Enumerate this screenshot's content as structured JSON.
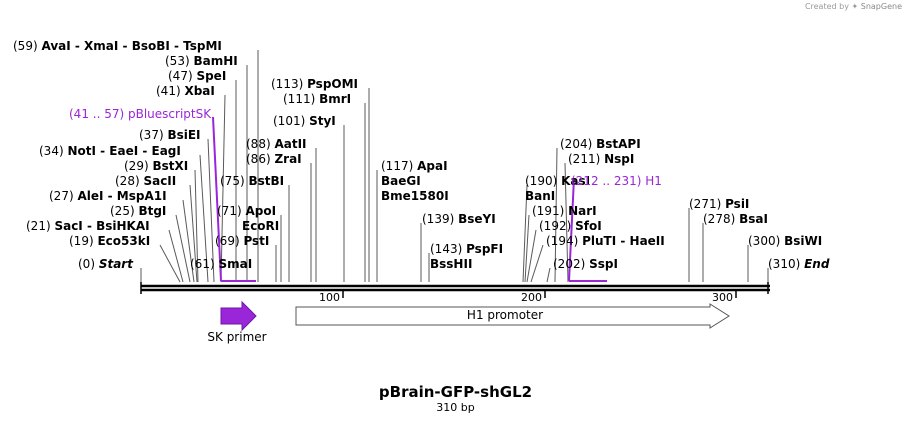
{
  "credit": {
    "prefix": "Created by",
    "brand": "SnapGene"
  },
  "map": {
    "title": "pBrain-GFP-shGL2",
    "length_label": "310 bp",
    "length": 310
  },
  "colors": {
    "feature": "#9a26d9",
    "line": "#5a5a5a",
    "backbone": "#000000"
  },
  "ticks": [
    {
      "value": 100,
      "label": "100"
    },
    {
      "value": 200,
      "label": "200"
    },
    {
      "value": 300,
      "label": "300"
    }
  ],
  "sites": [
    {
      "pos": "(59)",
      "name": "AvaI  - XmaI  - BsoBI  - TspMI"
    },
    {
      "pos": "(53)",
      "name": "BamHI"
    },
    {
      "pos": "(47)",
      "name": "SpeI"
    },
    {
      "pos": "(41)",
      "name": "XbaI"
    },
    {
      "pos": "(41 .. 57)",
      "name": "pBluescriptSK"
    },
    {
      "pos": "(37)",
      "name": "BsiEI"
    },
    {
      "pos": "(34)",
      "name": "NotI  - EaeI  - EagI"
    },
    {
      "pos": "(29)",
      "name": "BstXI"
    },
    {
      "pos": "(28)",
      "name": "SacII"
    },
    {
      "pos": "(27)",
      "name": "AleI  - MspA1I"
    },
    {
      "pos": "(25)",
      "name": "BtgI"
    },
    {
      "pos": "(21)",
      "name": "SacI  - BsiHKAI"
    },
    {
      "pos": "(19)",
      "name": "Eco53kI"
    },
    {
      "pos": "(0)",
      "name": "Start"
    },
    {
      "pos": "(61)",
      "name": "SmaI"
    },
    {
      "pos": "(69)",
      "name": "PstI"
    },
    {
      "pos": "(71)",
      "name": "ApoI"
    },
    {
      "pos": "",
      "name": "EcoRI"
    },
    {
      "pos": "(75)",
      "name": "BstBI"
    },
    {
      "pos": "(86)",
      "name": "ZraI"
    },
    {
      "pos": "(88)",
      "name": "AatII"
    },
    {
      "pos": "(101)",
      "name": "StyI"
    },
    {
      "pos": "(111)",
      "name": "BmrI"
    },
    {
      "pos": "(113)",
      "name": "PspOMI"
    },
    {
      "pos": "(117)",
      "name": "ApaI"
    },
    {
      "pos": "",
      "name": "BaeGI"
    },
    {
      "pos": "",
      "name": "Bme1580I"
    },
    {
      "pos": "(139)",
      "name": "BseYI"
    },
    {
      "pos": "(143)",
      "name": "PspFI"
    },
    {
      "pos": "",
      "name": "BssHII"
    },
    {
      "pos": "(204)",
      "name": "BstAPI"
    },
    {
      "pos": "(211)",
      "name": "NspI"
    },
    {
      "pos": "(190)",
      "name": "KasI"
    },
    {
      "pos": "(212 .. 231)",
      "name": "H1"
    },
    {
      "pos": "",
      "name": "BanI"
    },
    {
      "pos": "(191)",
      "name": "NarI"
    },
    {
      "pos": "(192)",
      "name": "SfoI"
    },
    {
      "pos": "(194)",
      "name": "PluTI  - HaeII"
    },
    {
      "pos": "(202)",
      "name": "SspI"
    },
    {
      "pos": "(271)",
      "name": "PsiI"
    },
    {
      "pos": "(278)",
      "name": "BsaI"
    },
    {
      "pos": "(300)",
      "name": "BsiWI"
    },
    {
      "pos": "(310)",
      "name": "End"
    }
  ],
  "features": [
    {
      "name": "SK primer",
      "start": 41,
      "end": 57
    },
    {
      "name": "H1 promoter",
      "start": 76,
      "end": 293
    }
  ]
}
